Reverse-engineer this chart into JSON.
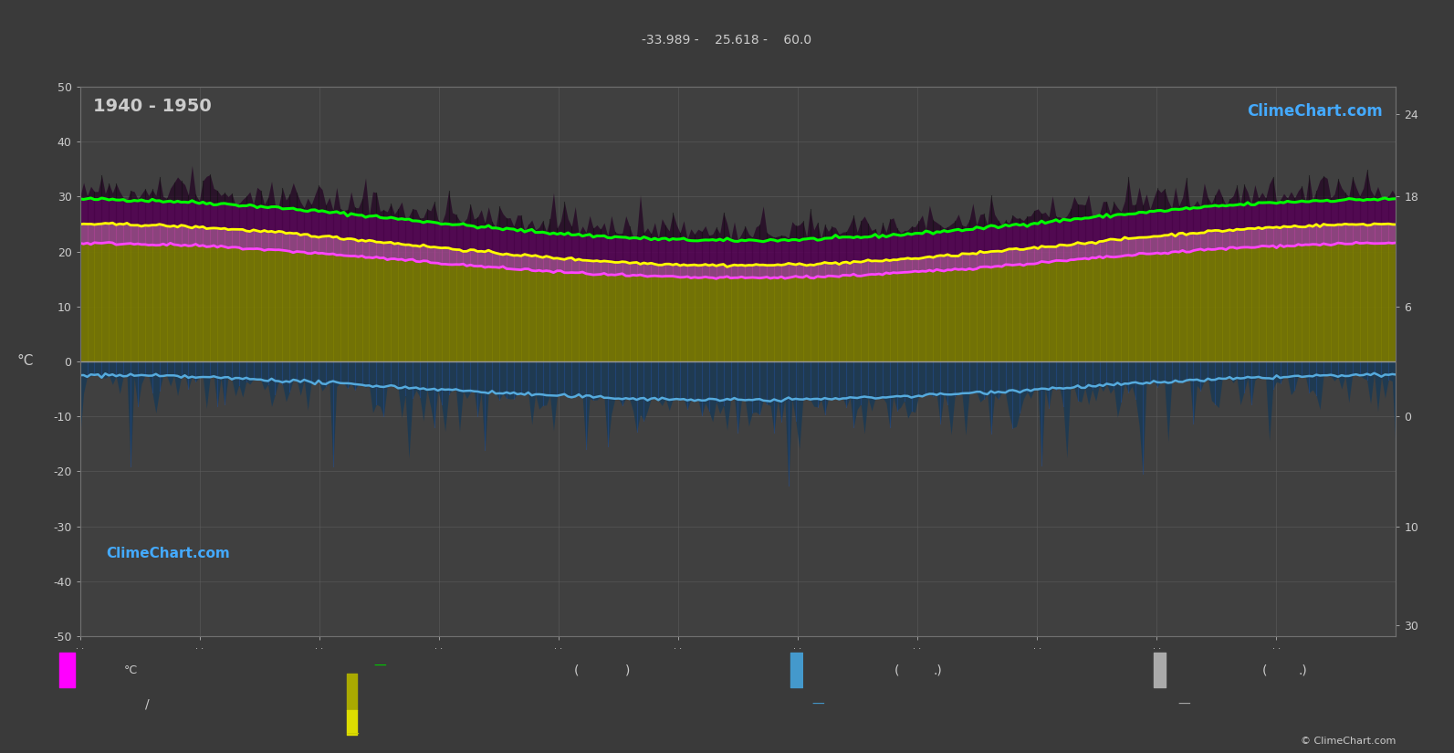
{
  "title": "1940 - 1950",
  "subtitle_top": "-33.989 -    25.618 -    60.0",
  "bg_color": "#3a3a3a",
  "plot_bg_color": "#404040",
  "left_ylim": [
    -50,
    50
  ],
  "left_ylabel": "°C",
  "green_peak": 29.5,
  "green_trough": 22.0,
  "yellow_peak": 25.0,
  "yellow_trough": 17.5,
  "magenta_peak": 21.5,
  "magenta_trough": 15.2,
  "blue_curve_peak": -2.5,
  "blue_curve_trough": -7.0,
  "green_color": "#00ff00",
  "yellow_color": "#ffff00",
  "magenta_color": "#ff44ff",
  "blue_color": "#55aadd",
  "olive_color": "#888800",
  "blue_fill_color": "#1a4060",
  "purple_color": "#660066",
  "pink_color": "#cc44aa",
  "grid_color": "#555555",
  "text_color": "#cccccc",
  "logo_text": "ClimeChart.com",
  "copyright_text": "© ClimeChart.com",
  "right_ticks_pos": [
    45,
    30,
    10,
    -10,
    -30,
    -48
  ],
  "right_ticks_labels": [
    "24",
    "18",
    "6",
    "0",
    "10",
    "30"
  ]
}
